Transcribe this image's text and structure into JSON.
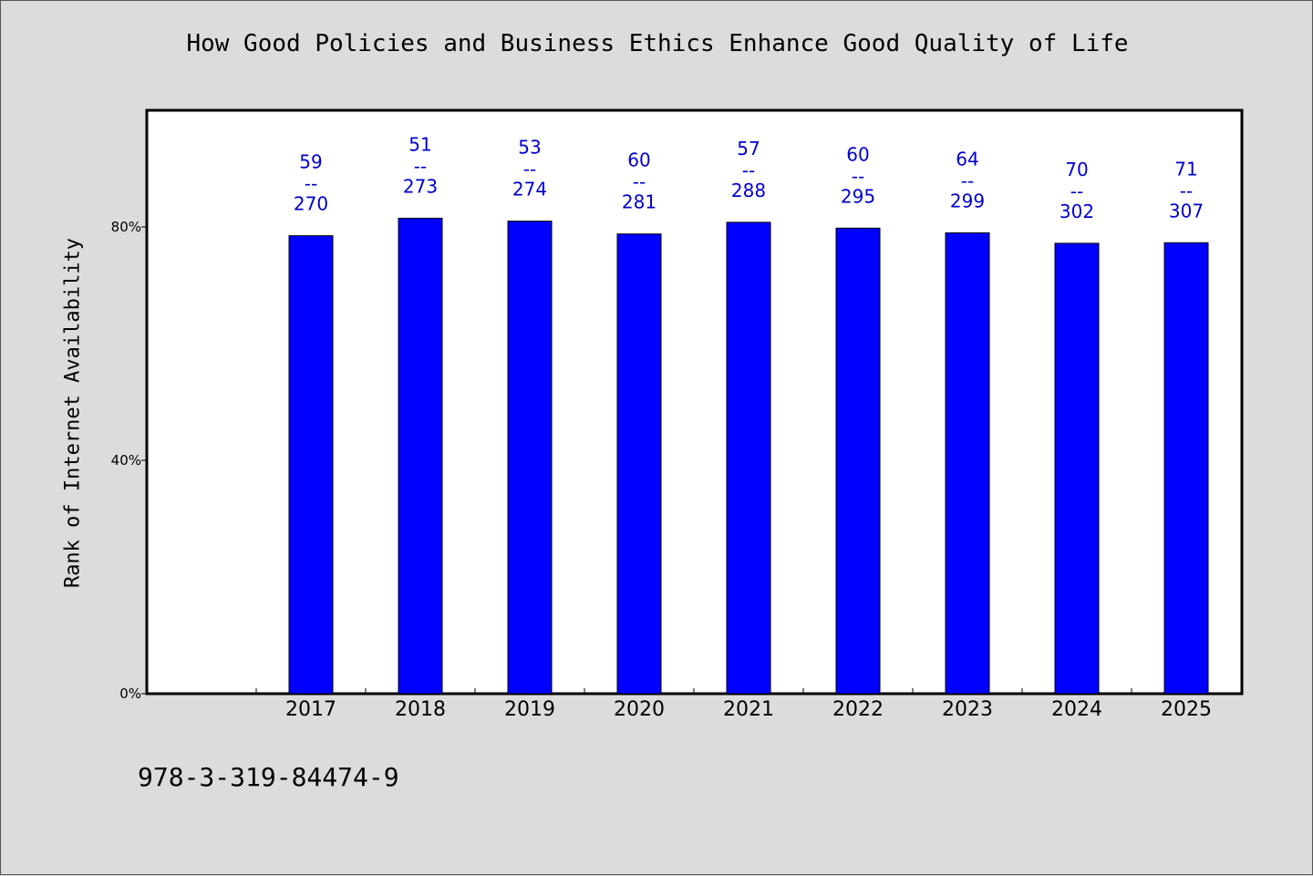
{
  "chart_data": {
    "type": "bar",
    "title": "How Good Policies and Business Ethics Enhance Good Quality of Life",
    "ylabel": "Rank of Internet Availability",
    "xlabel": "",
    "categories": [
      "2017",
      "2018",
      "2019",
      "2020",
      "2021",
      "2022",
      "2023",
      "2024",
      "2025"
    ],
    "values": [
      78.5,
      81.5,
      81.0,
      78.8,
      80.8,
      79.8,
      79.0,
      77.2,
      77.3
    ],
    "data_labels": [
      {
        "top": "59",
        "sep": "--",
        "bottom": "270"
      },
      {
        "top": "51",
        "sep": "--",
        "bottom": "273"
      },
      {
        "top": "53",
        "sep": "--",
        "bottom": "274"
      },
      {
        "top": "60",
        "sep": "--",
        "bottom": "281"
      },
      {
        "top": "57",
        "sep": "--",
        "bottom": "288"
      },
      {
        "top": "60",
        "sep": "--",
        "bottom": "295"
      },
      {
        "top": "64",
        "sep": "--",
        "bottom": "299"
      },
      {
        "top": "70",
        "sep": "--",
        "bottom": "302"
      },
      {
        "top": "71",
        "sep": "--",
        "bottom": "307"
      }
    ],
    "ylim": [
      0,
      100
    ],
    "y_ticks": [
      0,
      40,
      80
    ],
    "y_tick_labels": [
      "0%",
      "40%",
      "80%"
    ],
    "grid": false,
    "bar_color": "#0000ff",
    "label_color": "#0000cc"
  },
  "footer": {
    "isbn": "978-3-319-84474-9"
  }
}
